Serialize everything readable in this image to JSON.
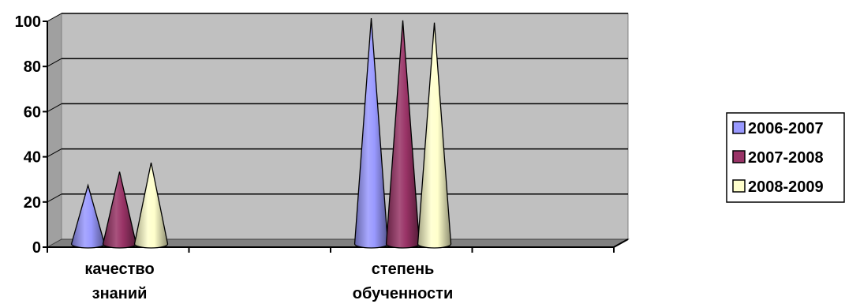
{
  "chart_data": {
    "type": "bar",
    "style": "3d-cone",
    "categories": [
      "качество знаний",
      "степень обученности"
    ],
    "category_lines": [
      [
        "качество",
        "знаний"
      ],
      [
        "степень",
        "обученности"
      ]
    ],
    "series": [
      {
        "name": "2006-2007",
        "values": [
          26,
          100
        ],
        "color": "#9999ff"
      },
      {
        "name": "2007-2008",
        "values": [
          32,
          99
        ],
        "color": "#993366"
      },
      {
        "name": "2008-2009",
        "values": [
          36,
          98
        ],
        "color": "#ffffcc"
      }
    ],
    "ylim": [
      0,
      100
    ],
    "yticks": [
      "0",
      "20",
      "40",
      "60",
      "80",
      "100"
    ],
    "grid": true,
    "legend_position": "right",
    "plot_background": "#c0c0c0"
  }
}
